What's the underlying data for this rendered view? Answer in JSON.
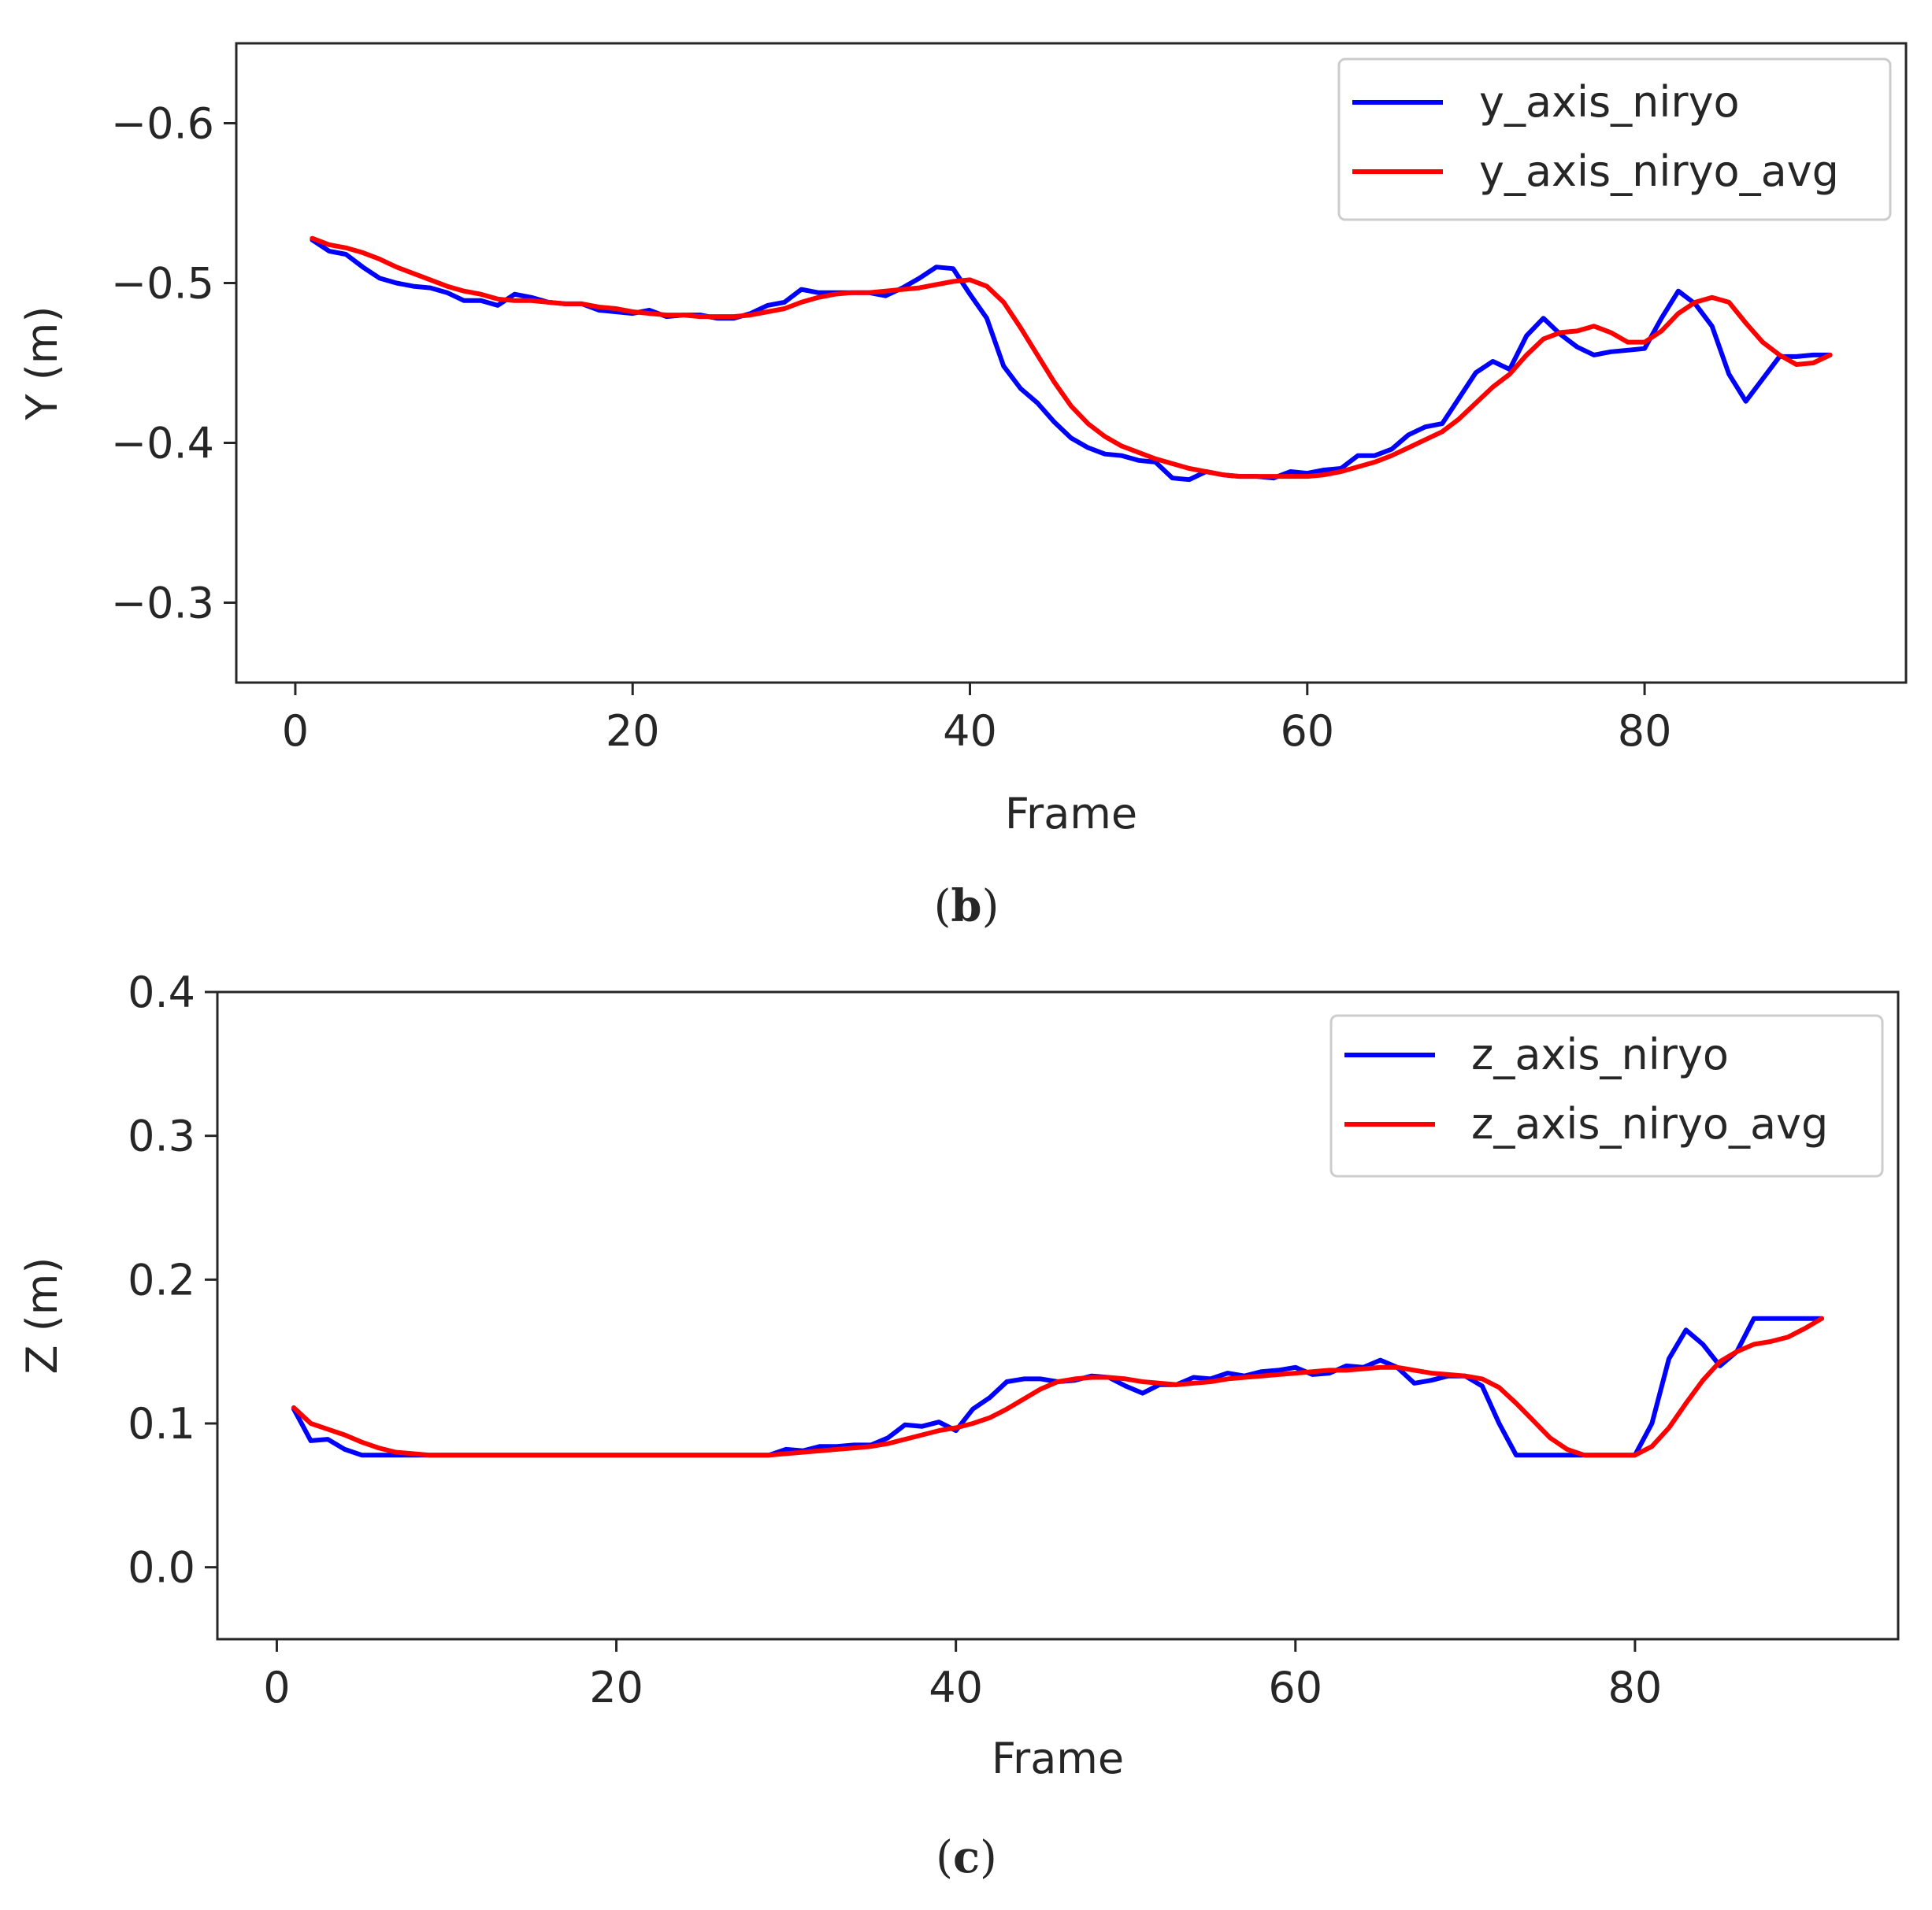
{
  "chart_data": [
    {
      "type": "line",
      "panel_label": "b",
      "xlabel": "Frame",
      "ylabel": "Y (m)",
      "xlim": [
        -3.5,
        95.5
      ],
      "ylim": [
        -0.25,
        -0.65
      ],
      "xticks": [
        0,
        20,
        40,
        60,
        80
      ],
      "xtick_labels": [
        "0",
        "20",
        "40",
        "60",
        "80"
      ],
      "yticks": [
        -0.6,
        -0.5,
        -0.4,
        -0.3
      ],
      "ytick_labels": [
        "−0.6",
        "−0.5",
        "−0.4",
        "−0.3"
      ],
      "legend_position": "top-right",
      "series": [
        {
          "name": "y_axis_niryo",
          "color": "#0000ff",
          "x": [
            1,
            2,
            3,
            4,
            5,
            6,
            7,
            8,
            9,
            10,
            11,
            12,
            13,
            14,
            15,
            16,
            17,
            18,
            19,
            20,
            21,
            22,
            23,
            24,
            25,
            26,
            27,
            28,
            29,
            30,
            31,
            32,
            33,
            34,
            35,
            36,
            37,
            38,
            39,
            40,
            41,
            42,
            43,
            44,
            45,
            46,
            47,
            48,
            49,
            50,
            51,
            52,
            53,
            54,
            55,
            56,
            57,
            58,
            59,
            60,
            61,
            62,
            63,
            64,
            65,
            66,
            67,
            68,
            69,
            70,
            71,
            72,
            73,
            74,
            75,
            76,
            77,
            78,
            79,
            80,
            81,
            82,
            83,
            84,
            85,
            86,
            87,
            88,
            89,
            90,
            91
          ],
          "y": [
            -0.527,
            -0.52,
            -0.518,
            -0.51,
            -0.503,
            -0.5,
            -0.498,
            -0.497,
            -0.494,
            -0.489,
            -0.489,
            -0.486,
            -0.493,
            -0.491,
            -0.488,
            -0.487,
            -0.487,
            -0.483,
            -0.482,
            -0.481,
            -0.483,
            -0.479,
            -0.48,
            -0.48,
            -0.478,
            -0.478,
            -0.481,
            -0.486,
            -0.488,
            -0.496,
            -0.494,
            -0.494,
            -0.494,
            -0.494,
            -0.492,
            -0.497,
            -0.503,
            -0.51,
            -0.509,
            -0.493,
            -0.478,
            -0.448,
            -0.434,
            -0.425,
            -0.413,
            -0.403,
            -0.397,
            -0.393,
            -0.392,
            -0.389,
            -0.388,
            -0.378,
            -0.377,
            -0.382,
            -0.38,
            -0.379,
            -0.379,
            -0.378,
            -0.382,
            -0.381,
            -0.383,
            -0.384,
            -0.392,
            -0.392,
            -0.396,
            -0.405,
            -0.41,
            -0.412,
            -0.428,
            -0.444,
            -0.451,
            -0.446,
            -0.467,
            -0.478,
            -0.468,
            -0.46,
            -0.455,
            -0.457,
            -0.458,
            -0.459,
            -0.478,
            -0.495,
            -0.487,
            -0.473,
            -0.443,
            -0.426,
            -0.44,
            -0.454,
            -0.454,
            -0.455,
            -0.455
          ]
        },
        {
          "name": "y_axis_niryo_avg",
          "color": "#ff0000",
          "x": [
            1,
            2,
            3,
            4,
            5,
            6,
            7,
            8,
            9,
            10,
            11,
            12,
            13,
            14,
            15,
            16,
            17,
            18,
            19,
            20,
            21,
            22,
            23,
            24,
            25,
            26,
            27,
            28,
            29,
            30,
            31,
            32,
            33,
            34,
            35,
            36,
            37,
            38,
            39,
            40,
            41,
            42,
            43,
            44,
            45,
            46,
            47,
            48,
            49,
            50,
            51,
            52,
            53,
            54,
            55,
            56,
            57,
            58,
            59,
            60,
            61,
            62,
            63,
            64,
            65,
            66,
            67,
            68,
            69,
            70,
            71,
            72,
            73,
            74,
            75,
            76,
            77,
            78,
            79,
            80,
            81,
            82,
            83,
            84,
            85,
            86,
            87,
            88,
            89,
            90,
            91
          ],
          "y": [
            -0.528,
            -0.524,
            -0.522,
            -0.519,
            -0.515,
            -0.51,
            -0.506,
            -0.502,
            -0.498,
            -0.495,
            -0.493,
            -0.49,
            -0.489,
            -0.489,
            -0.488,
            -0.487,
            -0.487,
            -0.485,
            -0.484,
            -0.482,
            -0.481,
            -0.48,
            -0.48,
            -0.479,
            -0.479,
            -0.479,
            -0.48,
            -0.482,
            -0.484,
            -0.488,
            -0.491,
            -0.493,
            -0.494,
            -0.494,
            -0.495,
            -0.496,
            -0.497,
            -0.499,
            -0.501,
            -0.502,
            -0.498,
            -0.488,
            -0.472,
            -0.455,
            -0.438,
            -0.423,
            -0.412,
            -0.404,
            -0.398,
            -0.394,
            -0.39,
            -0.387,
            -0.384,
            -0.382,
            -0.38,
            -0.379,
            -0.379,
            -0.379,
            -0.379,
            -0.379,
            -0.38,
            -0.382,
            -0.385,
            -0.388,
            -0.392,
            -0.397,
            -0.402,
            -0.407,
            -0.415,
            -0.425,
            -0.435,
            -0.443,
            -0.455,
            -0.465,
            -0.469,
            -0.47,
            -0.473,
            -0.469,
            -0.463,
            -0.463,
            -0.47,
            -0.481,
            -0.488,
            -0.491,
            -0.488,
            -0.475,
            -0.463,
            -0.455,
            -0.449,
            -0.45,
            -0.455
          ]
        }
      ]
    },
    {
      "type": "line",
      "panel_label": "c",
      "xlabel": "Frame",
      "ylabel": "Z (m)",
      "xlim": [
        -3.5,
        95.5
      ],
      "ylim": [
        -0.05,
        0.4
      ],
      "xticks": [
        0,
        20,
        40,
        60,
        80
      ],
      "xtick_labels": [
        "0",
        "20",
        "40",
        "60",
        "80"
      ],
      "yticks": [
        0.0,
        0.1,
        0.2,
        0.3,
        0.4
      ],
      "ytick_labels": [
        "0.0",
        "0.1",
        "0.2",
        "0.3",
        "0.4"
      ],
      "legend_position": "top-right",
      "series": [
        {
          "name": "z_axis_niryo",
          "color": "#0000ff",
          "x": [
            1,
            2,
            3,
            4,
            5,
            6,
            7,
            8,
            9,
            10,
            11,
            12,
            13,
            14,
            15,
            16,
            17,
            18,
            19,
            20,
            21,
            22,
            23,
            24,
            25,
            26,
            27,
            28,
            29,
            30,
            31,
            32,
            33,
            34,
            35,
            36,
            37,
            38,
            39,
            40,
            41,
            42,
            43,
            44,
            45,
            46,
            47,
            48,
            49,
            50,
            51,
            52,
            53,
            54,
            55,
            56,
            57,
            58,
            59,
            60,
            61,
            62,
            63,
            64,
            65,
            66,
            67,
            68,
            69,
            70,
            71,
            72,
            73,
            74,
            75,
            76,
            77,
            78,
            79,
            80,
            81,
            82,
            83,
            84,
            85,
            86,
            87,
            88,
            89,
            90,
            91
          ],
          "y": [
            0.11,
            0.088,
            0.089,
            0.082,
            0.078,
            0.078,
            0.078,
            0.078,
            0.078,
            0.078,
            0.078,
            0.078,
            0.078,
            0.078,
            0.078,
            0.078,
            0.078,
            0.078,
            0.078,
            0.078,
            0.078,
            0.078,
            0.078,
            0.078,
            0.078,
            0.078,
            0.078,
            0.078,
            0.078,
            0.082,
            0.081,
            0.084,
            0.084,
            0.085,
            0.085,
            0.09,
            0.099,
            0.098,
            0.101,
            0.095,
            0.11,
            0.118,
            0.129,
            0.131,
            0.131,
            0.129,
            0.13,
            0.133,
            0.132,
            0.126,
            0.121,
            0.127,
            0.127,
            0.132,
            0.131,
            0.135,
            0.133,
            0.136,
            0.137,
            0.139,
            0.134,
            0.135,
            0.14,
            0.139,
            0.144,
            0.139,
            0.128,
            0.13,
            0.133,
            0.133,
            0.126,
            0.1,
            0.078,
            0.078,
            0.078,
            0.078,
            0.078,
            0.078,
            0.078,
            0.078,
            0.1,
            0.145,
            0.165,
            0.155,
            0.14,
            0.15,
            0.173,
            0.173,
            0.173,
            0.173,
            0.173
          ]
        },
        {
          "name": "z_axis_niryo_avg",
          "color": "#ff0000",
          "x": [
            1,
            2,
            3,
            4,
            5,
            6,
            7,
            8,
            9,
            10,
            11,
            12,
            13,
            14,
            15,
            16,
            17,
            18,
            19,
            20,
            21,
            22,
            23,
            24,
            25,
            26,
            27,
            28,
            29,
            30,
            31,
            32,
            33,
            34,
            35,
            36,
            37,
            38,
            39,
            40,
            41,
            42,
            43,
            44,
            45,
            46,
            47,
            48,
            49,
            50,
            51,
            52,
            53,
            54,
            55,
            56,
            57,
            58,
            59,
            60,
            61,
            62,
            63,
            64,
            65,
            66,
            67,
            68,
            69,
            70,
            71,
            72,
            73,
            74,
            75,
            76,
            77,
            78,
            79,
            80,
            81,
            82,
            83,
            84,
            85,
            86,
            87,
            88,
            89,
            90,
            91
          ],
          "y": [
            0.111,
            0.1,
            0.096,
            0.092,
            0.087,
            0.083,
            0.08,
            0.079,
            0.078,
            0.078,
            0.078,
            0.078,
            0.078,
            0.078,
            0.078,
            0.078,
            0.078,
            0.078,
            0.078,
            0.078,
            0.078,
            0.078,
            0.078,
            0.078,
            0.078,
            0.078,
            0.078,
            0.078,
            0.078,
            0.079,
            0.08,
            0.081,
            0.082,
            0.083,
            0.084,
            0.086,
            0.089,
            0.092,
            0.095,
            0.097,
            0.1,
            0.104,
            0.11,
            0.117,
            0.124,
            0.129,
            0.131,
            0.132,
            0.132,
            0.131,
            0.129,
            0.128,
            0.127,
            0.128,
            0.129,
            0.131,
            0.132,
            0.133,
            0.134,
            0.135,
            0.136,
            0.137,
            0.137,
            0.138,
            0.139,
            0.139,
            0.137,
            0.135,
            0.134,
            0.133,
            0.131,
            0.125,
            0.114,
            0.102,
            0.09,
            0.082,
            0.078,
            0.078,
            0.078,
            0.078,
            0.084,
            0.097,
            0.114,
            0.13,
            0.143,
            0.15,
            0.155,
            0.157,
            0.16,
            0.166,
            0.173
          ]
        }
      ]
    }
  ]
}
